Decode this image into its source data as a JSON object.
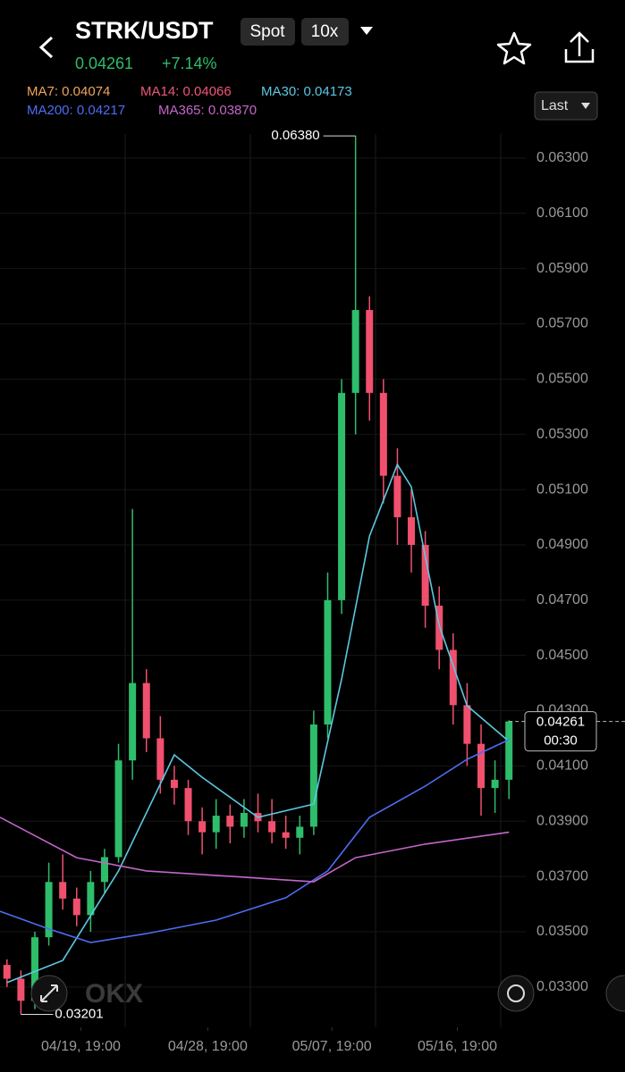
{
  "header": {
    "pair": "STRK/USDT",
    "market": "Spot",
    "leverage": "10x",
    "price": "0.04261",
    "change": "+7.14%"
  },
  "legend": [
    {
      "label": "MA7: 0.04074",
      "color": "#f0a45c"
    },
    {
      "label": "MA14: 0.04066",
      "color": "#f0567a"
    },
    {
      "label": "MA30: 0.04173",
      "color": "#5cc8e2"
    },
    {
      "label": "MA200: 0.04217",
      "color": "#4d6df2"
    },
    {
      "label": "MA365: 0.03870",
      "color": "#c466c8"
    }
  ],
  "price_type": "Last",
  "chart_data": {
    "type": "candlestick",
    "up_color": "#2ebd6b",
    "down_color": "#f0506e",
    "xlim": [
      -0.5,
      36.5
    ],
    "xticks": [
      {
        "value": 5.3,
        "label": "04/19, 19:00"
      },
      {
        "value": 14.4,
        "label": "04/28, 19:00"
      },
      {
        "value": 23.3,
        "label": "05/07, 19:00"
      },
      {
        "value": 32.3,
        "label": "05/16, 19:00"
      }
    ],
    "ylim": [
      0.03154,
      0.06387
    ],
    "yticks": [
      {
        "value": 0.063,
        "label": "0.06300"
      },
      {
        "value": 0.061,
        "label": "0.06100"
      },
      {
        "value": 0.059,
        "label": "0.05900"
      },
      {
        "value": 0.057,
        "label": "0.05700"
      },
      {
        "value": 0.055,
        "label": "0.05500"
      },
      {
        "value": 0.053,
        "label": "0.05300"
      },
      {
        "value": 0.051,
        "label": "0.05100"
      },
      {
        "value": 0.049,
        "label": "0.04900"
      },
      {
        "value": 0.047,
        "label": "0.04700"
      },
      {
        "value": 0.045,
        "label": "0.04500"
      },
      {
        "value": 0.043,
        "label": "0.04300"
      },
      {
        "value": 0.041,
        "label": "0.04100"
      },
      {
        "value": 0.039,
        "label": "0.03900"
      },
      {
        "value": 0.037,
        "label": "0.03700"
      },
      {
        "value": 0.035,
        "label": "0.03500"
      },
      {
        "value": 0.033,
        "label": "0.03300"
      }
    ],
    "candles": [
      [
        0.0338,
        0.034,
        0.033,
        0.0333
      ],
      [
        0.0333,
        0.0336,
        0.03201,
        0.0325
      ],
      [
        0.0325,
        0.035,
        0.0322,
        0.0348
      ],
      [
        0.0348,
        0.0375,
        0.0345,
        0.0368
      ],
      [
        0.0368,
        0.0378,
        0.0358,
        0.0362
      ],
      [
        0.0362,
        0.0366,
        0.0352,
        0.0356
      ],
      [
        0.0356,
        0.0372,
        0.035,
        0.0368
      ],
      [
        0.0368,
        0.038,
        0.0364,
        0.0377
      ],
      [
        0.0377,
        0.0418,
        0.0375,
        0.0412
      ],
      [
        0.0412,
        0.0503,
        0.0405,
        0.044
      ],
      [
        0.044,
        0.0445,
        0.0415,
        0.042
      ],
      [
        0.042,
        0.0428,
        0.04,
        0.0405
      ],
      [
        0.0405,
        0.041,
        0.0396,
        0.0402
      ],
      [
        0.0402,
        0.0405,
        0.0385,
        0.039
      ],
      [
        0.039,
        0.0395,
        0.0378,
        0.0386
      ],
      [
        0.0386,
        0.0398,
        0.038,
        0.0392
      ],
      [
        0.0392,
        0.0396,
        0.0382,
        0.0388
      ],
      [
        0.0388,
        0.0398,
        0.0384,
        0.0393
      ],
      [
        0.0393,
        0.04,
        0.0386,
        0.039
      ],
      [
        0.039,
        0.0398,
        0.0382,
        0.0386
      ],
      [
        0.0386,
        0.0392,
        0.038,
        0.0384
      ],
      [
        0.0384,
        0.0392,
        0.0378,
        0.0388
      ],
      [
        0.0388,
        0.043,
        0.0385,
        0.0425
      ],
      [
        0.0425,
        0.048,
        0.042,
        0.047
      ],
      [
        0.047,
        0.055,
        0.0465,
        0.0545
      ],
      [
        0.0545,
        0.0638,
        0.053,
        0.0575
      ],
      [
        0.0575,
        0.058,
        0.0535,
        0.0545
      ],
      [
        0.0545,
        0.055,
        0.0505,
        0.0515
      ],
      [
        0.0515,
        0.0525,
        0.049,
        0.05
      ],
      [
        0.05,
        0.051,
        0.048,
        0.049
      ],
      [
        0.049,
        0.0495,
        0.046,
        0.0468
      ],
      [
        0.0468,
        0.0475,
        0.0445,
        0.0452
      ],
      [
        0.0452,
        0.0458,
        0.0425,
        0.0432
      ],
      [
        0.0432,
        0.044,
        0.041,
        0.0418
      ],
      [
        0.0418,
        0.0425,
        0.0392,
        0.0402
      ],
      [
        0.0402,
        0.0412,
        0.0393,
        0.0405
      ],
      [
        0.0405,
        0.04265,
        0.0398,
        0.04261
      ]
    ],
    "lines": [
      {
        "color": "#5cc8e2",
        "x": [
          0,
          4,
          8,
          12,
          14,
          18,
          22,
          24,
          26,
          28,
          29,
          31,
          33,
          36
        ],
        "values": [
          0.03316,
          0.03396,
          0.0372,
          0.0414,
          0.04059,
          0.03914,
          0.03962,
          0.04415,
          0.04932,
          0.05191,
          0.0511,
          0.04609,
          0.04318,
          0.04189
        ]
      },
      {
        "color": "#4d6df2",
        "x": [
          -0.5,
          3,
          6,
          10,
          15,
          20,
          23,
          26,
          30,
          33,
          36
        ],
        "values": [
          0.03574,
          0.0351,
          0.03461,
          0.03493,
          0.03542,
          0.03623,
          0.0372,
          0.03914,
          0.04027,
          0.04124,
          0.04195
        ]
      },
      {
        "color": "#c466c8",
        "x": [
          -0.5,
          5,
          10,
          15,
          20,
          22,
          25,
          30,
          36
        ],
        "values": [
          0.03914,
          0.03768,
          0.0372,
          0.03704,
          0.03687,
          0.03681,
          0.03768,
          0.03817,
          0.0386
        ]
      }
    ],
    "high_label": "0.06380",
    "low_label": "0.03201",
    "last_price": {
      "value": 0.04261,
      "label": "0.04261"
    },
    "countdown": "00:30"
  }
}
